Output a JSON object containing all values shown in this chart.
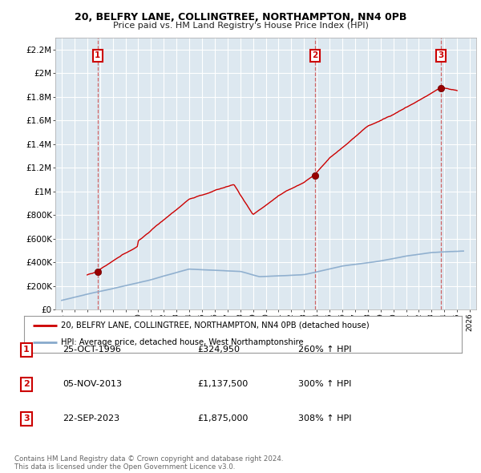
{
  "title": "20, BELFRY LANE, COLLINGTREE, NORTHAMPTON, NN4 0PB",
  "subtitle": "Price paid vs. HM Land Registry's House Price Index (HPI)",
  "bg_color": "#ffffff",
  "plot_bg_color": "#dde8f0",
  "ylabel_ticks": [
    "£0",
    "£200K",
    "£400K",
    "£600K",
    "£800K",
    "£1M",
    "£1.2M",
    "£1.4M",
    "£1.6M",
    "£1.8M",
    "£2M",
    "£2.2M"
  ],
  "ytick_values": [
    0,
    200000,
    400000,
    600000,
    800000,
    1000000,
    1200000,
    1400000,
    1600000,
    1800000,
    2000000,
    2200000
  ],
  "ylim": [
    0,
    2300000
  ],
  "xlim_start": 1993.5,
  "xlim_end": 2026.5,
  "xtick_years": [
    1994,
    1995,
    1996,
    1997,
    1998,
    1999,
    2000,
    2001,
    2002,
    2003,
    2004,
    2005,
    2006,
    2007,
    2008,
    2009,
    2010,
    2011,
    2012,
    2013,
    2014,
    2015,
    2016,
    2017,
    2018,
    2019,
    2020,
    2021,
    2022,
    2023,
    2024,
    2025,
    2026
  ],
  "sale_points": [
    {
      "year": 1996.82,
      "price": 324950,
      "label": "1"
    },
    {
      "year": 2013.85,
      "price": 1137500,
      "label": "2"
    },
    {
      "year": 2023.73,
      "price": 1875000,
      "label": "3"
    }
  ],
  "vline_years": [
    1996.82,
    2013.85,
    2023.73
  ],
  "red_line_color": "#cc0000",
  "blue_line_color": "#88aacc",
  "sale_marker_color": "#990000",
  "legend_label_red": "20, BELFRY LANE, COLLINGTREE, NORTHAMPTON, NN4 0PB (detached house)",
  "legend_label_blue": "HPI: Average price, detached house, West Northamptonshire",
  "table_data": [
    {
      "num": "1",
      "date": "25-OCT-1996",
      "price": "£324,950",
      "change": "260% ↑ HPI"
    },
    {
      "num": "2",
      "date": "05-NOV-2013",
      "price": "£1,137,500",
      "change": "300% ↑ HPI"
    },
    {
      "num": "3",
      "date": "22-SEP-2023",
      "price": "£1,875,000",
      "change": "308% ↑ HPI"
    }
  ],
  "footer": "Contains HM Land Registry data © Crown copyright and database right 2024.\nThis data is licensed under the Open Government Licence v3.0."
}
